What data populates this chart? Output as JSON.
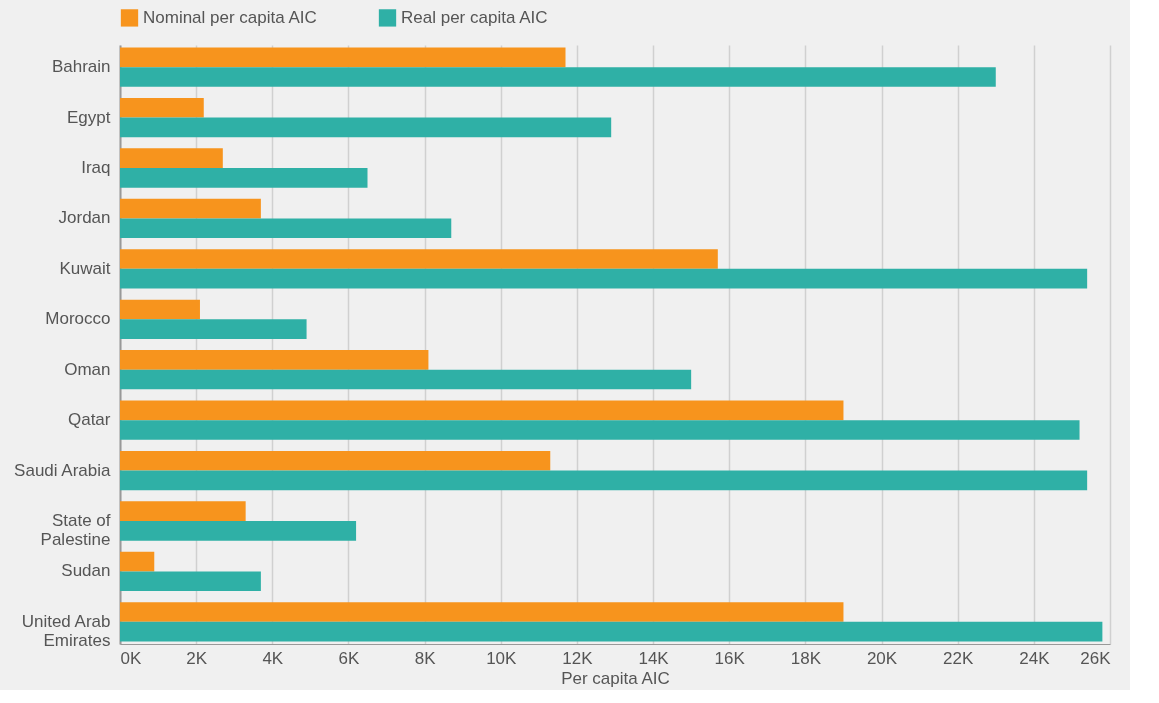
{
  "chart_data": {
    "type": "bar",
    "orientation": "horizontal",
    "xlabel": "Per capita AIC",
    "categories": [
      "Bahrain",
      "Egypt",
      "Iraq",
      "Jordan",
      "Kuwait",
      "Morocco",
      "Oman",
      "Qatar",
      "Saudi Arabia",
      "State of Palestine",
      "Sudan",
      "United Arab Emirates"
    ],
    "series": [
      {
        "name": "Nominal per capita AIC",
        "color": "#f7941d",
        "values": [
          11.7,
          2.2,
          2.7,
          3.7,
          15.7,
          2.1,
          8.1,
          19.0,
          11.3,
          3.3,
          0.9,
          19.0
        ]
      },
      {
        "name": "Real per capita AIC",
        "color": "#2fb0a6",
        "values": [
          23.0,
          12.9,
          6.5,
          8.7,
          25.4,
          4.9,
          15.0,
          25.2,
          25.4,
          6.2,
          3.7,
          25.8
        ]
      }
    ],
    "xlim": [
      0,
      26
    ],
    "xticks": [
      {
        "value": 0,
        "label": "0K"
      },
      {
        "value": 2,
        "label": "2K"
      },
      {
        "value": 4,
        "label": "4K"
      },
      {
        "value": 6,
        "label": "6K"
      },
      {
        "value": 8,
        "label": "8K"
      },
      {
        "value": 10,
        "label": "10K"
      },
      {
        "value": 12,
        "label": "12K"
      },
      {
        "value": 14,
        "label": "14K"
      },
      {
        "value": 16,
        "label": "16K"
      },
      {
        "value": 18,
        "label": "18K"
      },
      {
        "value": 20,
        "label": "20K"
      },
      {
        "value": 22,
        "label": "22K"
      },
      {
        "value": 24,
        "label": "24K"
      },
      {
        "value": 26,
        "label": "26K"
      }
    ],
    "grid": "x",
    "legend": "top"
  }
}
